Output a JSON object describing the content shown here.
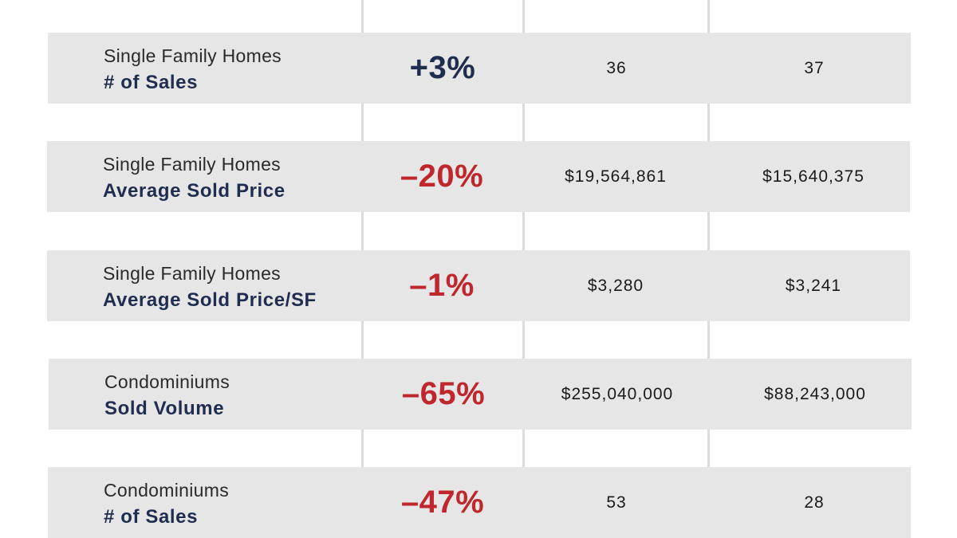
{
  "colors": {
    "row_background": "#e6e6e7",
    "divider": "#dcdcdc",
    "metric_text": "#1f2d4e",
    "positive_change": "#1f2d4e",
    "negative_change": "#c0272d"
  },
  "rows": [
    {
      "category": "Single Family Homes",
      "metric": "# of Sales",
      "change": "+3%",
      "change_direction": "positive",
      "value_1": "36",
      "value_2": "37"
    },
    {
      "category": "Single Family Homes",
      "metric": "Average Sold Price",
      "change": "–20%",
      "change_direction": "negative",
      "value_1": "$19,564,861",
      "value_2": "$15,640,375"
    },
    {
      "category": "Single Family Homes",
      "metric": "Average Sold Price/SF",
      "change": "–1%",
      "change_direction": "negative",
      "value_1": "$3,280",
      "value_2": "$3,241"
    },
    {
      "category": "Condominiums",
      "metric": "Sold Volume",
      "change": "–65%",
      "change_direction": "negative",
      "value_1": "$255,040,000",
      "value_2": "$88,243,000"
    },
    {
      "category": "Condominiums",
      "metric": "# of Sales",
      "change": "–47%",
      "change_direction": "negative",
      "value_1": "53",
      "value_2": "28"
    }
  ]
}
